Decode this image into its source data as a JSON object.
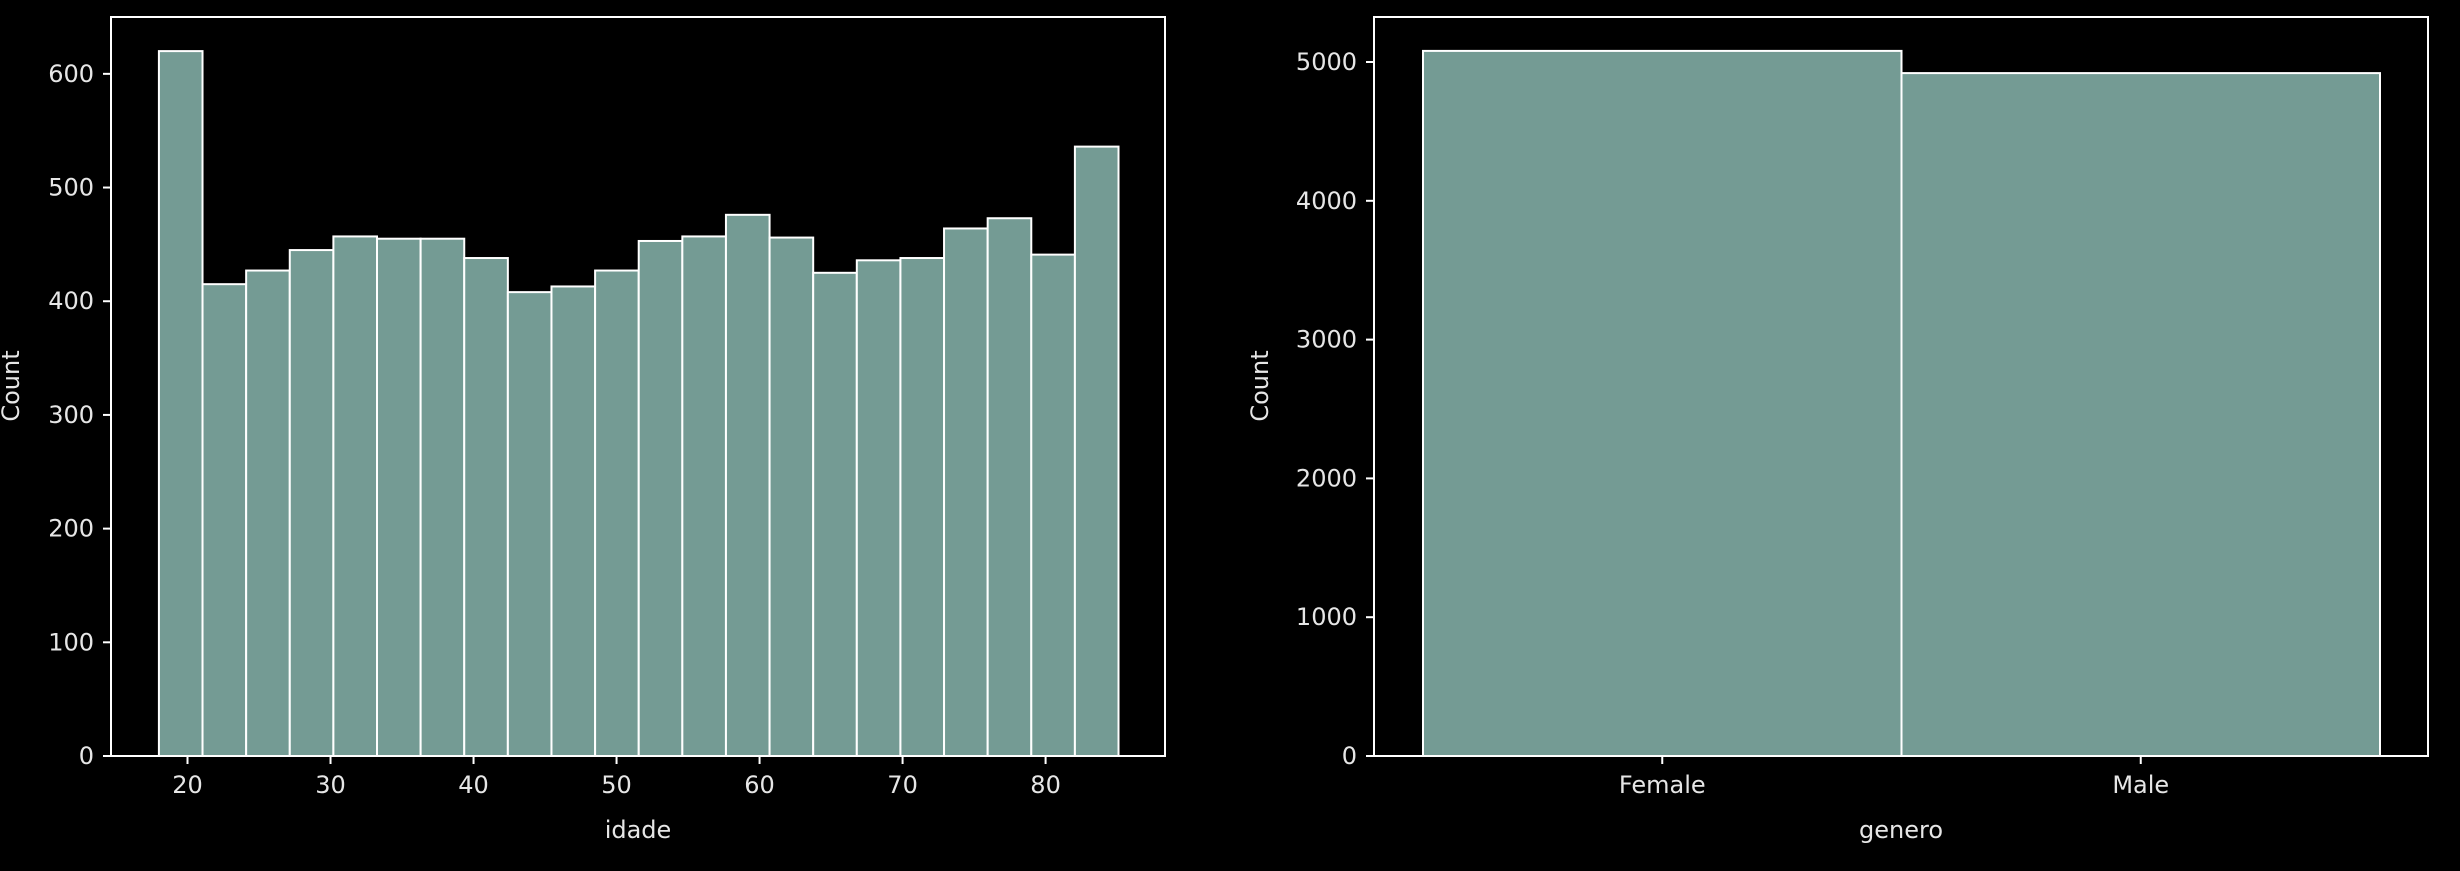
{
  "chart_data": [
    {
      "type": "bar",
      "title": "",
      "xlabel": "idade",
      "ylabel": "Count",
      "xlim": [
        14.65,
        88.35
      ],
      "ylim": [
        0,
        650
      ],
      "xticks": [
        "20",
        "30",
        "40",
        "50",
        "60",
        "70",
        "80"
      ],
      "yticks": [
        "0",
        "100",
        "200",
        "300",
        "400",
        "500",
        "600"
      ],
      "bin_start": 18,
      "bin_width": 3.05,
      "values": [
        620,
        415,
        427,
        445,
        457,
        455,
        455,
        438,
        408,
        413,
        427,
        453,
        457,
        476,
        456,
        425,
        436,
        438,
        464,
        473,
        441,
        536
      ],
      "bar_color": "#749b94",
      "edge_color": "#ffffff",
      "grid": false
    },
    {
      "type": "bar",
      "title": "",
      "xlabel": "genero",
      "ylabel": "Count",
      "ylim": [
        0,
        5000
      ],
      "categories": [
        "Female",
        "Male"
      ],
      "values": [
        5080,
        4920
      ],
      "yticks": [
        "0",
        "1000",
        "2000",
        "3000",
        "4000",
        "5000"
      ],
      "bar_color": "#749b94",
      "edge_color": "#ffffff",
      "grid": false
    }
  ]
}
